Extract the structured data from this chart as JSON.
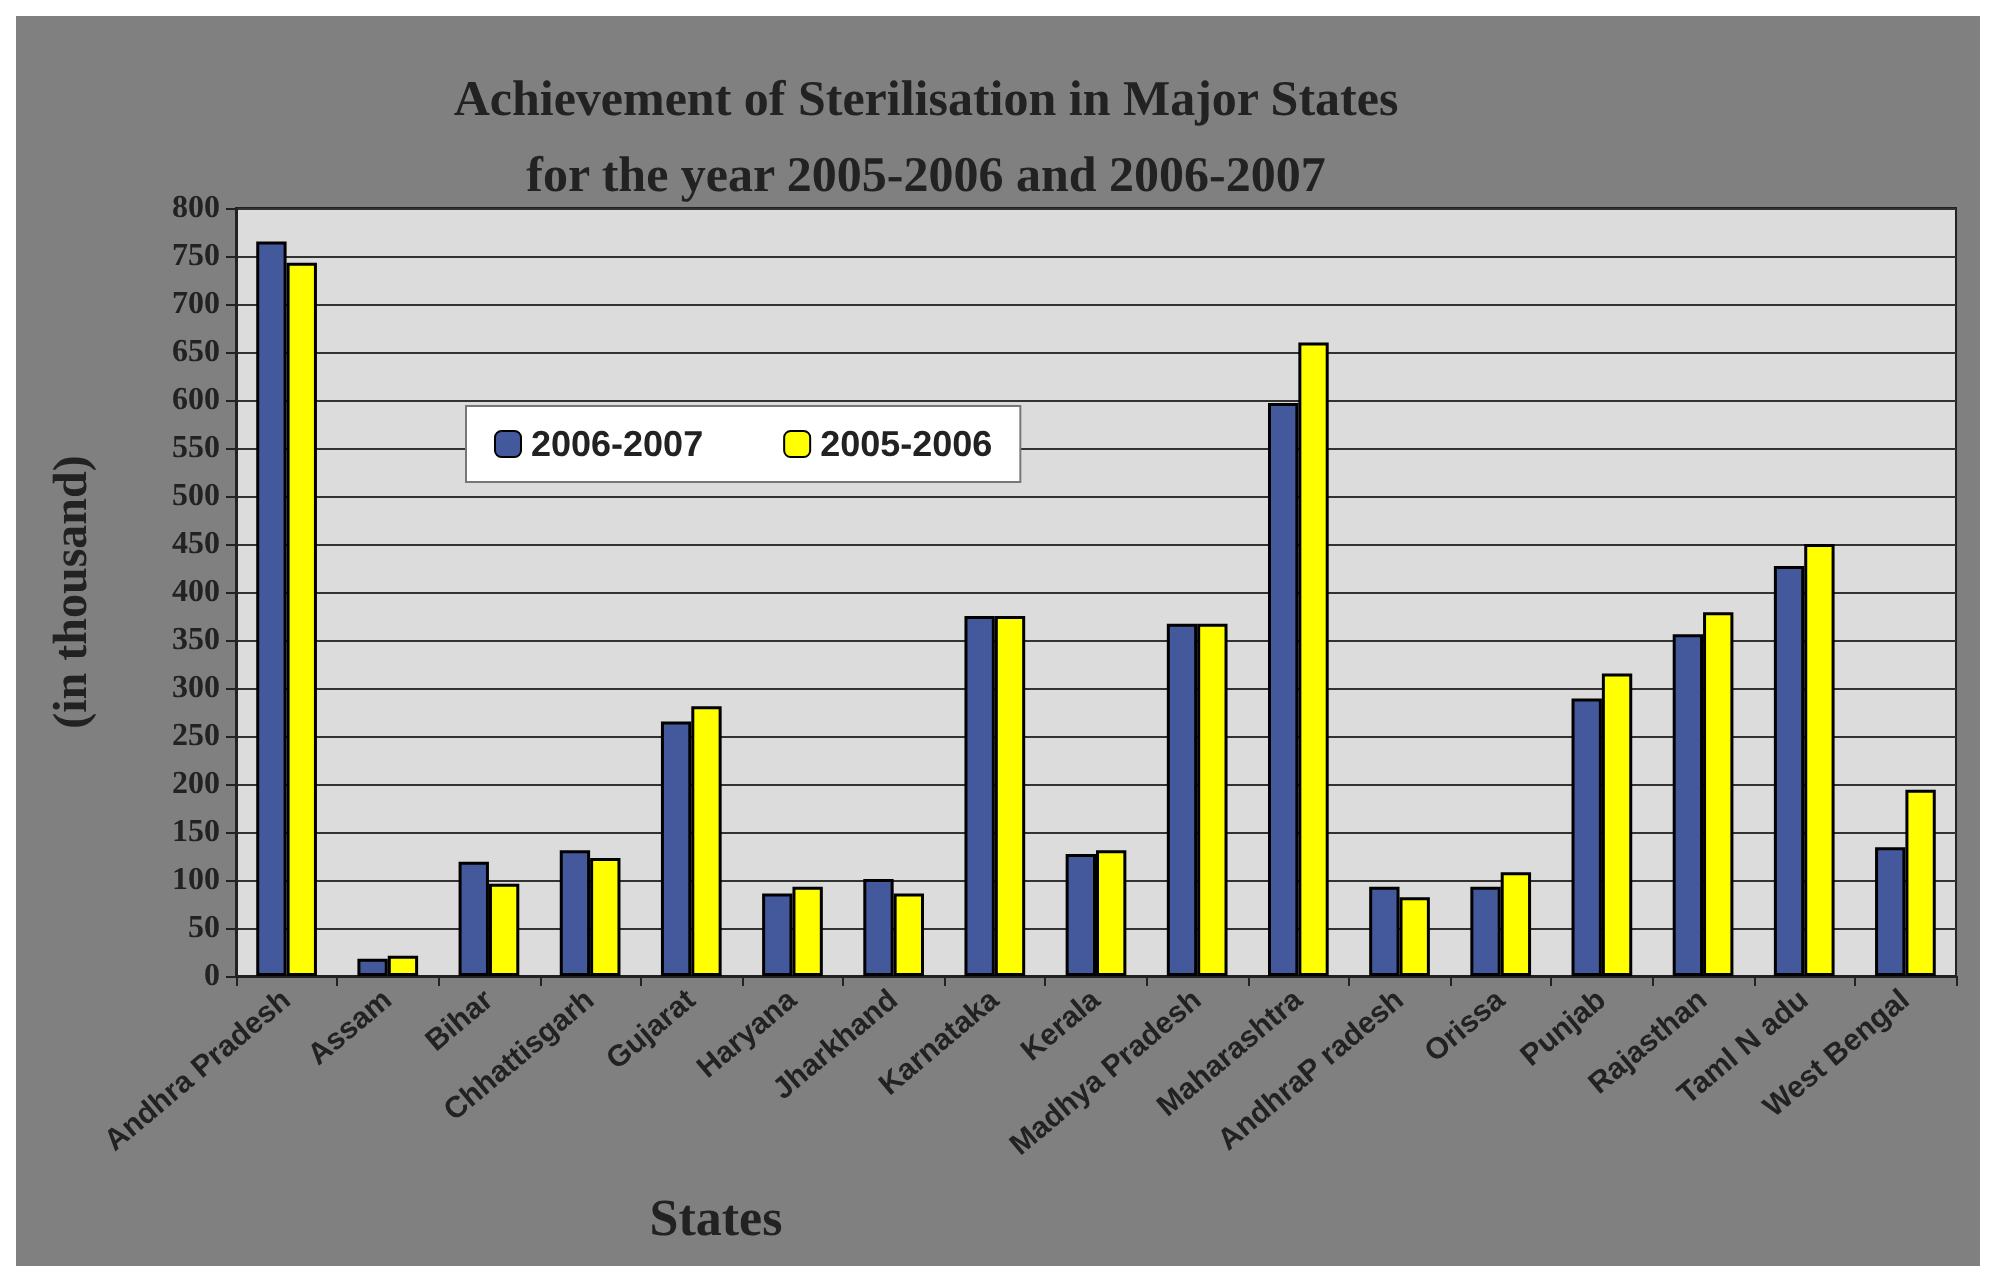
{
  "chart_data": {
    "type": "bar",
    "title": "Achievement of Sterilisation in Major States\nfor the year 2005-2006 and 2006-2007",
    "xlabel": "States",
    "ylabel": "(in thousand)",
    "categories": [
      "Andhra Pradesh",
      "Assam",
      "Bihar",
      "Chhattisgarh",
      "Gujarat",
      "Haryana",
      "Jharkhand",
      "Karnataka",
      "Kerala",
      "Madhya Pradesh",
      "Maharashtra",
      "AndhraP radesh",
      "Orissa",
      "Punjab",
      "Rajasthan",
      "Taml N adu",
      "West Bengal"
    ],
    "series": [
      {
        "name": "2006-2007",
        "color": "#44589c",
        "values": [
          765,
          18,
          119,
          131,
          265,
          86,
          101,
          375,
          127,
          367,
          597,
          93,
          93,
          289,
          356,
          427,
          134
        ]
      },
      {
        "name": "2005-2006",
        "color": "#ffff00",
        "values": [
          743,
          21,
          96,
          123,
          281,
          93,
          86,
          375,
          131,
          367,
          660,
          82,
          108,
          315,
          379,
          450,
          194
        ]
      }
    ],
    "ylim": [
      0,
      800
    ],
    "yticks": [
      0,
      50,
      100,
      150,
      200,
      250,
      300,
      350,
      400,
      450,
      500,
      550,
      600,
      650,
      700,
      750,
      800
    ],
    "grid": "y",
    "legend": "top left"
  }
}
